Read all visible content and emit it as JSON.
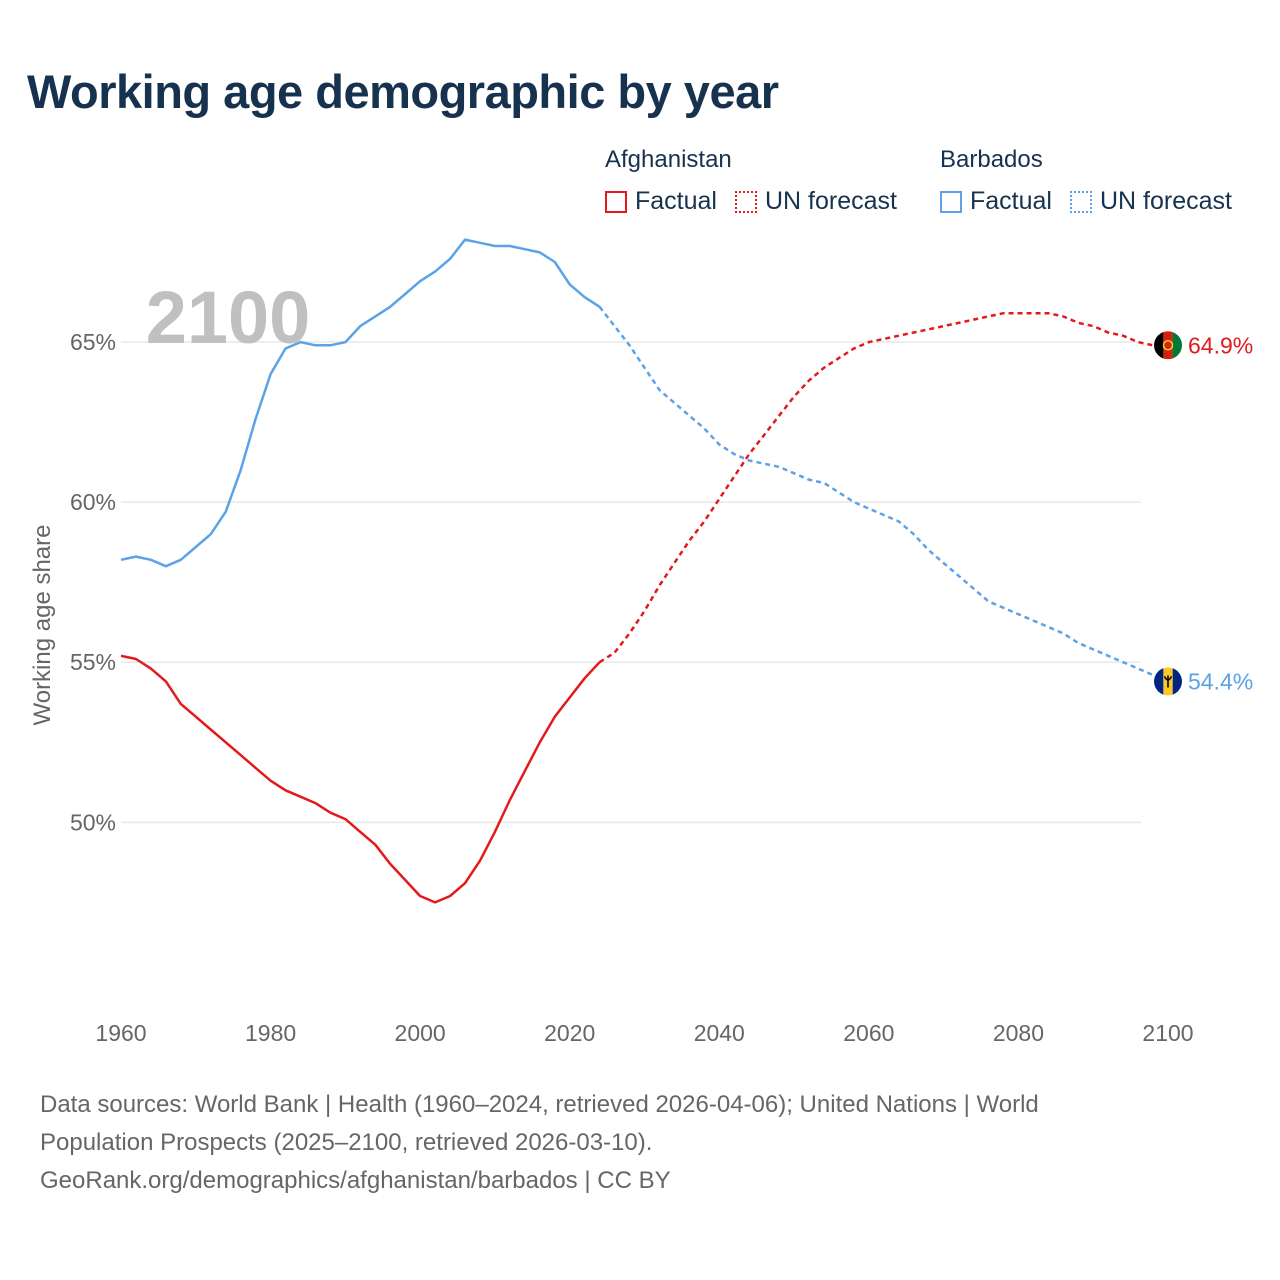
{
  "title": "Working age demographic by year",
  "year_watermark": "2100",
  "legend": {
    "afghanistan": {
      "country": "Afghanistan",
      "factual": "Factual",
      "forecast": "UN forecast",
      "color": "#e31a1c"
    },
    "barbados": {
      "country": "Barbados",
      "factual": "Factual",
      "forecast": "UN forecast",
      "color": "#5ba3e6"
    }
  },
  "colors": {
    "title": "#17324f",
    "axis_text": "#666666",
    "grid": "#e8e8e8",
    "watermark": "#c0c0c0",
    "afghanistan": "#e31a1c",
    "barbados": "#5ba3e6"
  },
  "chart_data": {
    "type": "line",
    "title": "Working age demographic by year",
    "xlabel": "",
    "ylabel": "Working age share",
    "xlim": [
      1960,
      2100
    ],
    "ylim": [
      45.7,
      68.5
    ],
    "x_ticks": [
      1960,
      1980,
      2000,
      2020,
      2040,
      2060,
      2080,
      2100
    ],
    "x_tick_labels": [
      "1960",
      "1980",
      "2000",
      "2020",
      "2040",
      "2060",
      "2080",
      "2100"
    ],
    "y_ticks": [
      50,
      55,
      60,
      65
    ],
    "y_tick_labels": [
      "50%",
      "55%",
      "60%",
      "65%"
    ],
    "series": [
      {
        "name": "Afghanistan",
        "color": "#e31a1c",
        "factual_years": [
          1960,
          1962,
          1964,
          1966,
          1968,
          1970,
          1972,
          1974,
          1976,
          1978,
          1980,
          1982,
          1984,
          1986,
          1988,
          1990,
          1992,
          1994,
          1996,
          1998,
          2000,
          2002,
          2004,
          2006,
          2008,
          2010,
          2012,
          2014,
          2016,
          2018,
          2020,
          2022,
          2024
        ],
        "factual_values": [
          55.2,
          55.1,
          54.8,
          54.4,
          53.7,
          53.3,
          52.9,
          52.5,
          52.1,
          51.7,
          51.3,
          51.0,
          50.8,
          50.6,
          50.3,
          50.1,
          49.7,
          49.3,
          48.7,
          48.2,
          47.7,
          47.5,
          47.7,
          48.1,
          48.8,
          49.7,
          50.7,
          51.6,
          52.5,
          53.3,
          53.9,
          54.5,
          55.0
        ],
        "forecast_years": [
          2024,
          2026,
          2028,
          2030,
          2032,
          2034,
          2036,
          2038,
          2040,
          2042,
          2044,
          2046,
          2048,
          2050,
          2052,
          2054,
          2056,
          2058,
          2060,
          2062,
          2064,
          2066,
          2068,
          2070,
          2072,
          2074,
          2076,
          2078,
          2080,
          2082,
          2084,
          2086,
          2088,
          2090,
          2092,
          2094,
          2096,
          2098,
          2100
        ],
        "forecast_values": [
          55.0,
          55.3,
          55.9,
          56.6,
          57.4,
          58.1,
          58.8,
          59.4,
          60.1,
          60.8,
          61.5,
          62.1,
          62.7,
          63.3,
          63.8,
          64.2,
          64.5,
          64.8,
          65.0,
          65.1,
          65.2,
          65.3,
          65.4,
          65.5,
          65.6,
          65.7,
          65.8,
          65.9,
          65.9,
          65.9,
          65.9,
          65.8,
          65.6,
          65.5,
          65.3,
          65.2,
          65.0,
          64.9,
          64.9
        ],
        "end_label": "64.9%"
      },
      {
        "name": "Barbados",
        "color": "#5ba3e6",
        "factual_years": [
          1960,
          1962,
          1964,
          1966,
          1968,
          1970,
          1972,
          1974,
          1976,
          1978,
          1980,
          1982,
          1984,
          1986,
          1988,
          1990,
          1992,
          1994,
          1996,
          1998,
          2000,
          2002,
          2004,
          2006,
          2008,
          2010,
          2012,
          2014,
          2016,
          2018,
          2020,
          2022,
          2024
        ],
        "factual_values": [
          58.2,
          58.3,
          58.2,
          58.0,
          58.2,
          58.6,
          59.0,
          59.7,
          61.0,
          62.6,
          64.0,
          64.8,
          65.0,
          64.9,
          64.9,
          65.0,
          65.5,
          65.8,
          66.1,
          66.5,
          66.9,
          67.2,
          67.6,
          68.2,
          68.1,
          68.0,
          68.0,
          67.9,
          67.8,
          67.5,
          66.8,
          66.4,
          66.1
        ],
        "forecast_years": [
          2024,
          2026,
          2028,
          2030,
          2032,
          2034,
          2036,
          2038,
          2040,
          2042,
          2044,
          2046,
          2048,
          2050,
          2052,
          2054,
          2056,
          2058,
          2060,
          2062,
          2064,
          2066,
          2068,
          2070,
          2072,
          2074,
          2076,
          2078,
          2080,
          2082,
          2084,
          2086,
          2088,
          2090,
          2092,
          2094,
          2096,
          2098,
          2100
        ],
        "forecast_values": [
          66.1,
          65.5,
          64.9,
          64.2,
          63.5,
          63.1,
          62.7,
          62.3,
          61.8,
          61.5,
          61.3,
          61.2,
          61.1,
          60.9,
          60.7,
          60.6,
          60.3,
          60.0,
          59.8,
          59.6,
          59.4,
          59.0,
          58.5,
          58.1,
          57.7,
          57.3,
          56.9,
          56.7,
          56.5,
          56.3,
          56.1,
          55.9,
          55.6,
          55.4,
          55.2,
          55.0,
          54.8,
          54.6,
          54.4
        ],
        "end_label": "54.4%"
      }
    ]
  },
  "source": {
    "line1": "Data sources: World Bank | Health (1960–2024, retrieved 2026-04-06); United Nations | World",
    "line2": "Population Prospects (2025–2100, retrieved 2026-03-10).",
    "line3": "GeoRank.org/demographics/afghanistan/barbados | CC BY"
  }
}
